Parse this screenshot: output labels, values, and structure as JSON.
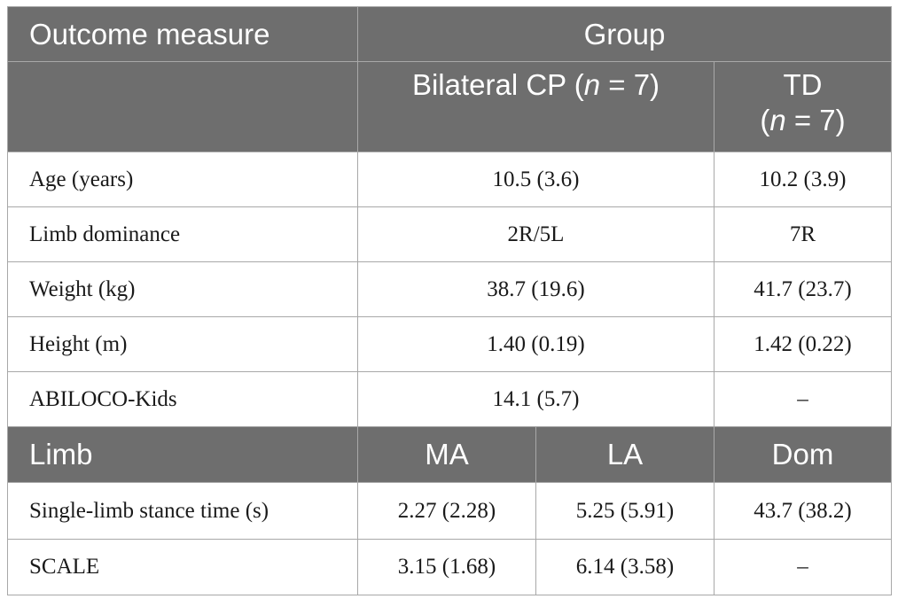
{
  "header": {
    "outcome_measure": "Outcome measure",
    "group": "Group",
    "cp_label": "Bilateral CP (",
    "n_symbol": "n",
    "cp_count": " = 7)",
    "td_label": "TD",
    "td_count_open": "(",
    "td_count_close": " = 7)"
  },
  "rows": [
    {
      "label": "Age (years)",
      "cp": "10.5 (3.6)",
      "td": "10.2 (3.9)"
    },
    {
      "label": "Limb dominance",
      "cp": "2R/5L",
      "td": "7R"
    },
    {
      "label": "Weight (kg)",
      "cp": "38.7 (19.6)",
      "td": "41.7 (23.7)"
    },
    {
      "label": "Height (m)",
      "cp": "1.40 (0.19)",
      "td": "1.42 (0.22)"
    },
    {
      "label": "ABILOCO-Kids",
      "cp": "14.1 (5.7)",
      "td": "–"
    }
  ],
  "limb_header": {
    "limb": "Limb",
    "ma": "MA",
    "la": "LA",
    "dom": "Dom"
  },
  "limb_rows": [
    {
      "label": "Single-limb stance time (s)",
      "ma": "2.27 (2.28)",
      "la": "5.25 (5.91)",
      "dom": "43.7 (38.2)"
    },
    {
      "label": "SCALE",
      "ma": "3.15 (1.68)",
      "la": "6.14 (3.58)",
      "dom": "–"
    }
  ]
}
